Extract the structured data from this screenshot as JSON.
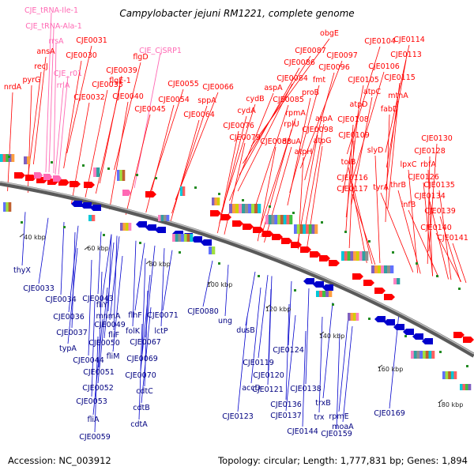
{
  "title": "Campylobacter jejuni RM1221, complete genome",
  "footer": {
    "accession": "Accession: NC_003912",
    "summary": "Topology: circular; Length: 1,777,831 bp; Genes: 1,894"
  },
  "colors": {
    "forward": "#ff0000",
    "reverse": "#0000cc",
    "rna": "#ff69b4",
    "backbone": "#808080",
    "marker": "#228b22"
  },
  "kbp_ticks": [
    "40 kbp",
    "60 kbp",
    "80 kbp",
    "100 kbp",
    "120 kbp",
    "140 kbp",
    "160 kbp",
    "180 kbp"
  ],
  "rna_labels": [
    "CJE_tRNA-Ile-1",
    "CJE_tRNA-Ala-1",
    "rrsA",
    "CJE_r01",
    "rrlA",
    "CJE_CjSRP1"
  ],
  "forward_labels": [
    "nrdA",
    "recJ",
    "ansA",
    "pyrG",
    "CJE0031",
    "CJE0030",
    "CJE0032",
    "CJE0035",
    "flgE-1",
    "CJE0039",
    "flgD",
    "CJE0040",
    "CJE0045",
    "CJE0055",
    "CJE0054",
    "CJE0066",
    "sppA",
    "CJE0064",
    "obgE",
    "CJE0087",
    "CJE0086",
    "CJE0084",
    "aspA",
    "cydB",
    "cydA",
    "CJE0076",
    "CJE0079",
    "CJE0085",
    "rpmA",
    "rplU",
    "dcuA",
    "CJE0088",
    "CJE0097",
    "fmt",
    "proB",
    "CJE0096",
    "CJE0098",
    "atpA",
    "atpG",
    "atpH",
    "CJE0104",
    "CJE0106",
    "CJE0105",
    "atpC",
    "atpD",
    "CJE0108",
    "CJE0109",
    "CJE0114",
    "CJE0113",
    "CJE0115",
    "mtnA",
    "fabD",
    "slyD",
    "tolB",
    "CJE0116",
    "CJE0117",
    "CJE0130",
    "CJE0128",
    "lpxC",
    "rbfA",
    "CJE0126",
    "thrB",
    "tyrA",
    "CJE0135",
    "CJE0134",
    "infB",
    "CJE0139",
    "CJE0140",
    "CJE0141"
  ],
  "reverse_labels": [
    "thyX",
    "CJE0033",
    "CJE0034",
    "CJE0036",
    "CJE0037",
    "typA",
    "CJE0043",
    "fliY",
    "mnmA",
    "CJE0049",
    "fliF",
    "CJE0050",
    "CJE0044",
    "fliM",
    "CJE0051",
    "CJE0052",
    "CJE0053",
    "fliA",
    "CJE0059",
    "flhF",
    "folK",
    "CJE0071",
    "lctP",
    "CJE0067",
    "CJE0069",
    "CJE0070",
    "cdtC",
    "cdtB",
    "cdtA",
    "CJE0080",
    "ung",
    "dusB",
    "CJE0124",
    "CJE0119",
    "CJE0120",
    "accD",
    "CJE0121",
    "CJE0123",
    "CJE0138",
    "trxB",
    "CJE0136",
    "CJE0137",
    "trx",
    "rpmE",
    "CJE0144",
    "moaA",
    "CJE0159",
    "CJE0169"
  ]
}
